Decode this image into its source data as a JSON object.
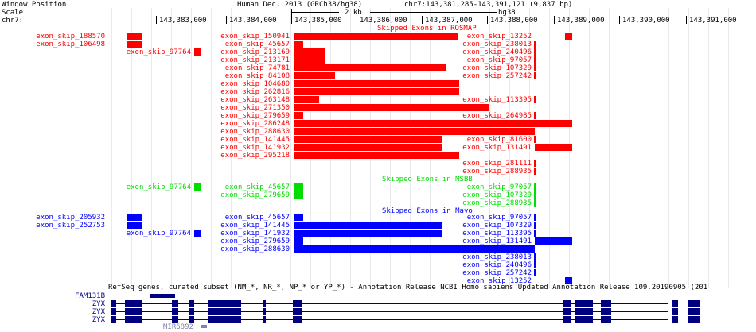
{
  "header": {
    "window_position_label": "Window Position",
    "scale_label": "Scale",
    "chrom_label": "chr7:",
    "assembly_title": "Human Dec. 2013 (GRCh38/hg38)",
    "region": "chr7:143,381,285-143,391,121 (9,837 bp)",
    "scale_value": "2 kb",
    "scale_assembly": "hg38",
    "ticks": [
      "143,383,000",
      "143,384,000",
      "143,385,000",
      "143,386,000",
      "143,387,000",
      "143,388,000",
      "143,389,000",
      "143,390,000",
      "143,391,000"
    ]
  },
  "colors": {
    "rosmap": "#ff0000",
    "msbb": "#00dd00",
    "mayo": "#0000ff",
    "gene": "#000080",
    "grid": "#e9e9ef"
  },
  "tracks": {
    "rosmap": {
      "title": "Skipped Exons in ROSMAP",
      "side_labels": [
        "exon_skip_188570",
        "exon_skip_106498"
      ],
      "inline_labels": {
        "left_col": [
          "exon_skip_97764"
        ],
        "main": [
          "exon_skip_150941",
          "exon_skip_45657",
          "exon_skip_213169",
          "exon_skip_213171",
          "exon_skip_74781",
          "exon_skip_84108",
          "exon_skip_104680",
          "exon_skip_262816",
          "exon_skip_263148",
          "exon_skip_271350",
          "exon_skip_279659",
          "exon_skip_286248",
          "exon_skip_288630",
          "exon_skip_141445",
          "exon_skip_141932",
          "exon_skip_295218"
        ],
        "right": [
          "exon_skip_13252",
          "exon_skip_238013",
          "exon_skip_240496",
          "exon_skip_97057",
          "exon_skip_107329",
          "exon_skip_257242",
          "exon_skip_113395",
          "exon_skip_264985",
          "exon_skip_81600",
          "exon_skip_131491",
          "exon_skip_281111",
          "exon_skip_288935"
        ]
      }
    },
    "msbb": {
      "title": "Skipped Exons in MSBB",
      "left_col": [
        "exon_skip_97764"
      ],
      "main": [
        "exon_skip_45657",
        "exon_skip_279659"
      ],
      "right": [
        "exon_skip_97057",
        "exon_skip_107329",
        "exon_skip_288935"
      ]
    },
    "mayo": {
      "title": "Skipped Exons in Mayo",
      "side_labels": [
        "exon_skip_205932",
        "exon_skip_252753"
      ],
      "left_col": [
        "exon_skip_97764"
      ],
      "main": [
        "exon_skip_45657",
        "exon_skip_141445",
        "exon_skip_141932",
        "exon_skip_279659",
        "exon_skip_288630"
      ],
      "right": [
        "exon_skip_97057",
        "exon_skip_107329",
        "exon_skip_113395",
        "exon_skip_131491",
        "exon_skip_238013",
        "exon_skip_240496",
        "exon_skip_257242",
        "exon_skip_13252"
      ]
    }
  },
  "genes": {
    "title": "RefSeq genes, curated subset (NM_*, NR_*, NP_* or YP_*) - Annotation Release NCBI Homo sapiens Updated Annotation Release 109.20190905 (201",
    "labels": [
      "FAM131B",
      "ZYX",
      "ZYX",
      "ZYX",
      "MIR6892"
    ]
  }
}
